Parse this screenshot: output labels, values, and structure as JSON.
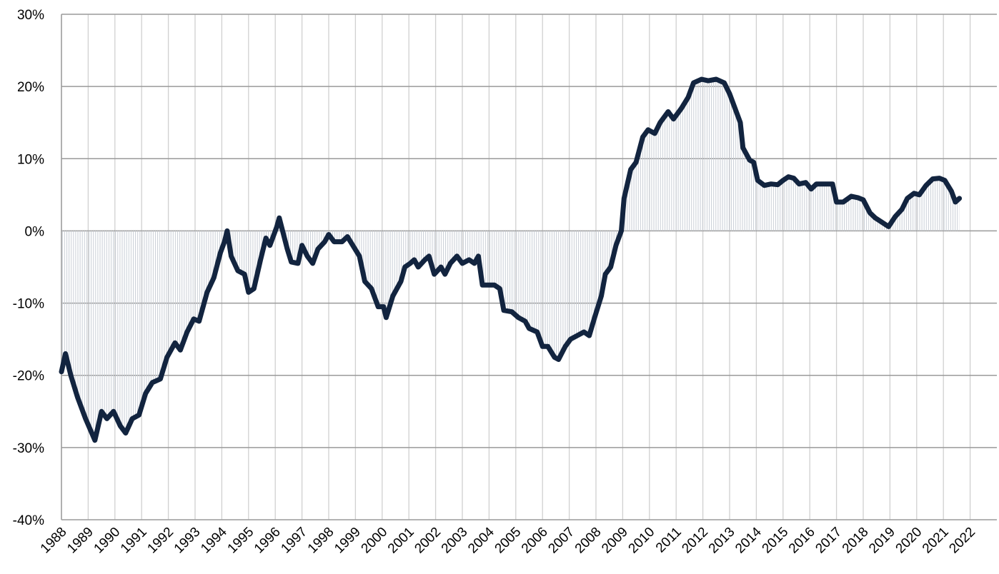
{
  "chart_data": {
    "type": "line",
    "x": [
      1988.0,
      1988.15,
      1988.35,
      1988.6,
      1988.9,
      1989.25,
      1989.5,
      1989.7,
      1989.95,
      1990.2,
      1990.4,
      1990.65,
      1990.9,
      1991.15,
      1991.4,
      1991.7,
      1991.95,
      1992.25,
      1992.45,
      1992.7,
      1992.95,
      1993.15,
      1993.45,
      1993.7,
      1993.95,
      1994.1,
      1994.2,
      1994.35,
      1994.6,
      1994.85,
      1995.0,
      1995.2,
      1995.45,
      1995.65,
      1995.8,
      1996.05,
      1996.15,
      1996.45,
      1996.6,
      1996.85,
      1997.0,
      1997.2,
      1997.4,
      1997.6,
      1997.85,
      1998.0,
      1998.2,
      1998.5,
      1998.7,
      1998.9,
      1999.15,
      1999.35,
      1999.6,
      1999.85,
      2000.05,
      2000.15,
      2000.4,
      2000.7,
      2000.85,
      2001.05,
      2001.2,
      2001.35,
      2001.6,
      2001.75,
      2001.95,
      2002.2,
      2002.35,
      2002.55,
      2002.8,
      2003.0,
      2003.25,
      2003.45,
      2003.6,
      2003.75,
      2004.0,
      2004.2,
      2004.4,
      2004.55,
      2004.85,
      2005.1,
      2005.35,
      2005.5,
      2005.8,
      2006.0,
      2006.2,
      2006.45,
      2006.6,
      2006.85,
      2007.05,
      2007.3,
      2007.55,
      2007.75,
      2007.95,
      2008.2,
      2008.35,
      2008.55,
      2008.75,
      2008.95,
      2009.05,
      2009.3,
      2009.5,
      2009.75,
      2009.95,
      2010.2,
      2010.4,
      2010.7,
      2010.9,
      2011.2,
      2011.45,
      2011.65,
      2011.95,
      2012.2,
      2012.5,
      2012.8,
      2013.0,
      2013.2,
      2013.4,
      2013.5,
      2013.75,
      2013.9,
      2014.05,
      2014.3,
      2014.55,
      2014.8,
      2015.0,
      2015.2,
      2015.4,
      2015.6,
      2015.85,
      2016.05,
      2016.25,
      2016.55,
      2016.85,
      2017.0,
      2017.25,
      2017.55,
      2017.8,
      2018.0,
      2018.25,
      2018.45,
      2018.7,
      2018.95,
      2019.2,
      2019.45,
      2019.65,
      2019.9,
      2020.1,
      2020.35,
      2020.6,
      2020.85,
      2021.05,
      2021.3,
      2021.45,
      2021.6
    ],
    "series": [
      {
        "color": "#12243f",
        "fill_color": "#c9ced6",
        "values": [
          -19.5,
          -17,
          -20,
          -23,
          -26,
          -29,
          -25,
          -26,
          -25,
          -27,
          -28,
          -26,
          -25.5,
          -22.5,
          -21,
          -20.5,
          -17.5,
          -15.5,
          -16.5,
          -14,
          -12.2,
          -12.5,
          -8.5,
          -6.5,
          -3,
          -1.5,
          0,
          -3.5,
          -5.5,
          -6,
          -8.5,
          -8,
          -4,
          -1,
          -2,
          0.5,
          1.8,
          -2.5,
          -4.3,
          -4.5,
          -2,
          -3.5,
          -4.5,
          -2.5,
          -1.5,
          -0.5,
          -1.5,
          -1.5,
          -0.8,
          -2,
          -3.5,
          -7,
          -8,
          -10.5,
          -10.5,
          -12,
          -9,
          -7,
          -5,
          -4.5,
          -4,
          -5,
          -4,
          -3.5,
          -6,
          -5,
          -6,
          -4.5,
          -3.5,
          -4.5,
          -4,
          -4.5,
          -3.5,
          -7.5,
          -7.5,
          -7.5,
          -8,
          -11,
          -11.2,
          -12,
          -12.5,
          -13.5,
          -14,
          -16,
          -16,
          -17.5,
          -17.8,
          -16,
          -15,
          -14.5,
          -14,
          -14.5,
          -12,
          -9,
          -6,
          -5,
          -2,
          0,
          4.5,
          8.5,
          9.5,
          13,
          14,
          13.5,
          15,
          16.5,
          15.5,
          17,
          18.5,
          20.5,
          21,
          20.8,
          21,
          20.5,
          19,
          17,
          15,
          11.5,
          9.8,
          9.5,
          7,
          6.3,
          6.5,
          6.4,
          7,
          7.5,
          7.3,
          6.5,
          6.7,
          5.8,
          6.5,
          6.5,
          6.5,
          4,
          4,
          4.8,
          4.6,
          4.3,
          2.5,
          1.8,
          1.2,
          0.6,
          2,
          3,
          4.5,
          5.2,
          5,
          6.3,
          7.2,
          7.3,
          7,
          5.5,
          4,
          4.5
        ]
      }
    ],
    "xlim": [
      1988,
      2023
    ],
    "xticks": [
      1988,
      1989,
      1990,
      1991,
      1992,
      1993,
      1994,
      1995,
      1996,
      1997,
      1998,
      1999,
      2000,
      2001,
      2002,
      2003,
      2004,
      2005,
      2006,
      2007,
      2008,
      2009,
      2010,
      2011,
      2012,
      2013,
      2014,
      2015,
      2016,
      2017,
      2018,
      2019,
      2020,
      2021,
      2022
    ],
    "ylim": [
      -40,
      30
    ],
    "yticks": [
      {
        "value": -40,
        "label": "-40%"
      },
      {
        "value": -30,
        "label": "-30%"
      },
      {
        "value": -20,
        "label": "-20%"
      },
      {
        "value": -10,
        "label": "-10%"
      },
      {
        "value": 0,
        "label": "0%"
      },
      {
        "value": 10,
        "label": "10%"
      },
      {
        "value": 20,
        "label": "20%"
      },
      {
        "value": 30,
        "label": "30%"
      }
    ],
    "grid": true
  }
}
